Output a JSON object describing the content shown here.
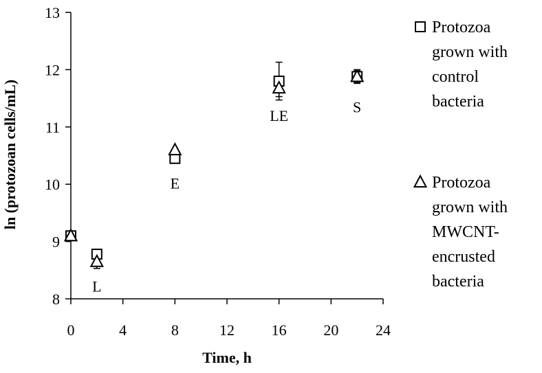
{
  "chart_data": {
    "type": "scatter",
    "xlabel": "Time, h",
    "ylabel": "ln (protozoan cells/mL)",
    "xlim": [
      0,
      24
    ],
    "ylim": [
      8,
      13
    ],
    "xticks": [
      "0",
      "4",
      "8",
      "12",
      "16",
      "20",
      "24"
    ],
    "yticks": [
      "8",
      "9",
      "10",
      "11",
      "12",
      "13"
    ],
    "grid": false,
    "legend_position": "right",
    "series": [
      {
        "name": "Protozoa grown with control bacteria",
        "legend_lines": [
          "Protozoa",
          "grown with",
          "control",
          "bacteria"
        ],
        "marker": "square",
        "x": [
          0,
          2,
          8,
          16,
          22
        ],
        "y": [
          9.1,
          8.78,
          10.45,
          11.8,
          11.88
        ],
        "error": [
          0,
          0,
          0,
          0.33,
          0.12
        ]
      },
      {
        "name": "Protozoa grown with MWCNT-encrusted bacteria",
        "legend_lines": [
          "Protozoa",
          "grown with",
          "MWCNT-",
          "encrusted",
          "bacteria"
        ],
        "marker": "triangle",
        "x": [
          0,
          2,
          8,
          16,
          22
        ],
        "y": [
          9.1,
          8.65,
          10.6,
          11.68,
          11.88
        ],
        "error": [
          0,
          0.12,
          0,
          0.15,
          0.1
        ]
      }
    ],
    "annotations": [
      {
        "text": "L",
        "x": 2,
        "y": 8.22
      },
      {
        "text": "E",
        "x": 8,
        "y": 10.02
      },
      {
        "text": "LE",
        "x": 16,
        "y": 11.2
      },
      {
        "text": "S",
        "x": 22,
        "y": 11.35
      }
    ]
  }
}
